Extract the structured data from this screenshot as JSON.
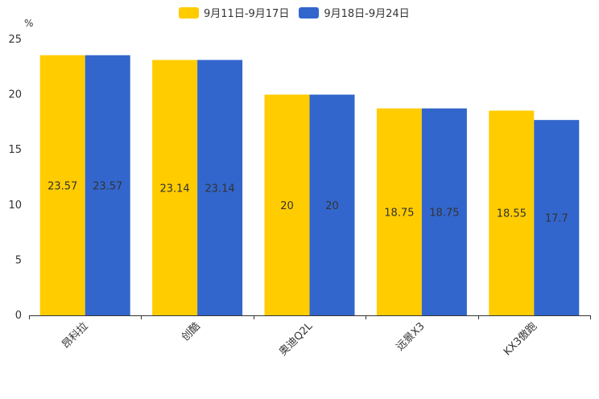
{
  "chart_data": {
    "type": "bar",
    "unit": "%",
    "categories": [
      "昂科拉",
      "创酷",
      "奥迪Q2L",
      "远景X3",
      "KX3傲跑"
    ],
    "series": [
      {
        "name": "9月11日-9月17日",
        "color": "#FFCC00",
        "values": [
          23.57,
          23.14,
          20,
          18.75,
          18.55
        ]
      },
      {
        "name": "9月18日-9月24日",
        "color": "#3366CC",
        "values": [
          23.57,
          23.14,
          20,
          18.75,
          17.7
        ]
      }
    ],
    "ylim": [
      0,
      25
    ],
    "yticks": [
      0,
      5,
      10,
      15,
      20,
      25
    ],
    "legend_position": "top-center",
    "grid": false
  }
}
